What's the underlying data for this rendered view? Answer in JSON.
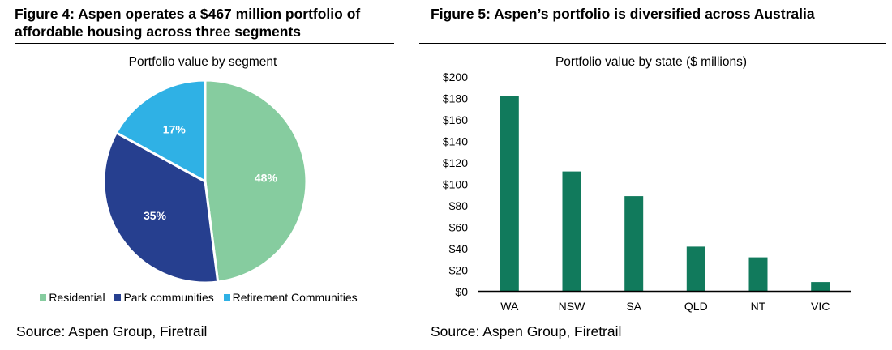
{
  "chart_data": [
    {
      "type": "pie",
      "figure_title": "Figure 4: Aspen operates a $467 million portfolio of affordable housing across three segments",
      "title": "Portfolio value by segment",
      "categories": [
        "Residential",
        "Park communities",
        "Retirement Communities"
      ],
      "values": [
        48,
        35,
        17
      ],
      "data_labels": [
        "48%",
        "35%",
        "17%"
      ],
      "colors": [
        "#86cc9f",
        "#263f8f",
        "#2fb1e5"
      ],
      "legend": "bottom",
      "source": "Source: Aspen Group, Firetrail"
    },
    {
      "type": "bar",
      "figure_title": "Figure 5: Aspen’s portfolio is diversified across Australia",
      "title": "Portfolio value by state ($ millions)",
      "categories": [
        "WA",
        "NSW",
        "SA",
        "QLD",
        "NT",
        "VIC"
      ],
      "values": [
        182,
        112,
        89,
        42,
        32,
        9
      ],
      "yticks": [
        "$0",
        "$20",
        "$40",
        "$60",
        "$80",
        "$100",
        "$120",
        "$140",
        "$160",
        "$180",
        "$200"
      ],
      "ylim": [
        0,
        200
      ],
      "bar_color": "#117a5c",
      "grid": false,
      "source": "Source: Aspen Group, Firetrail"
    }
  ]
}
